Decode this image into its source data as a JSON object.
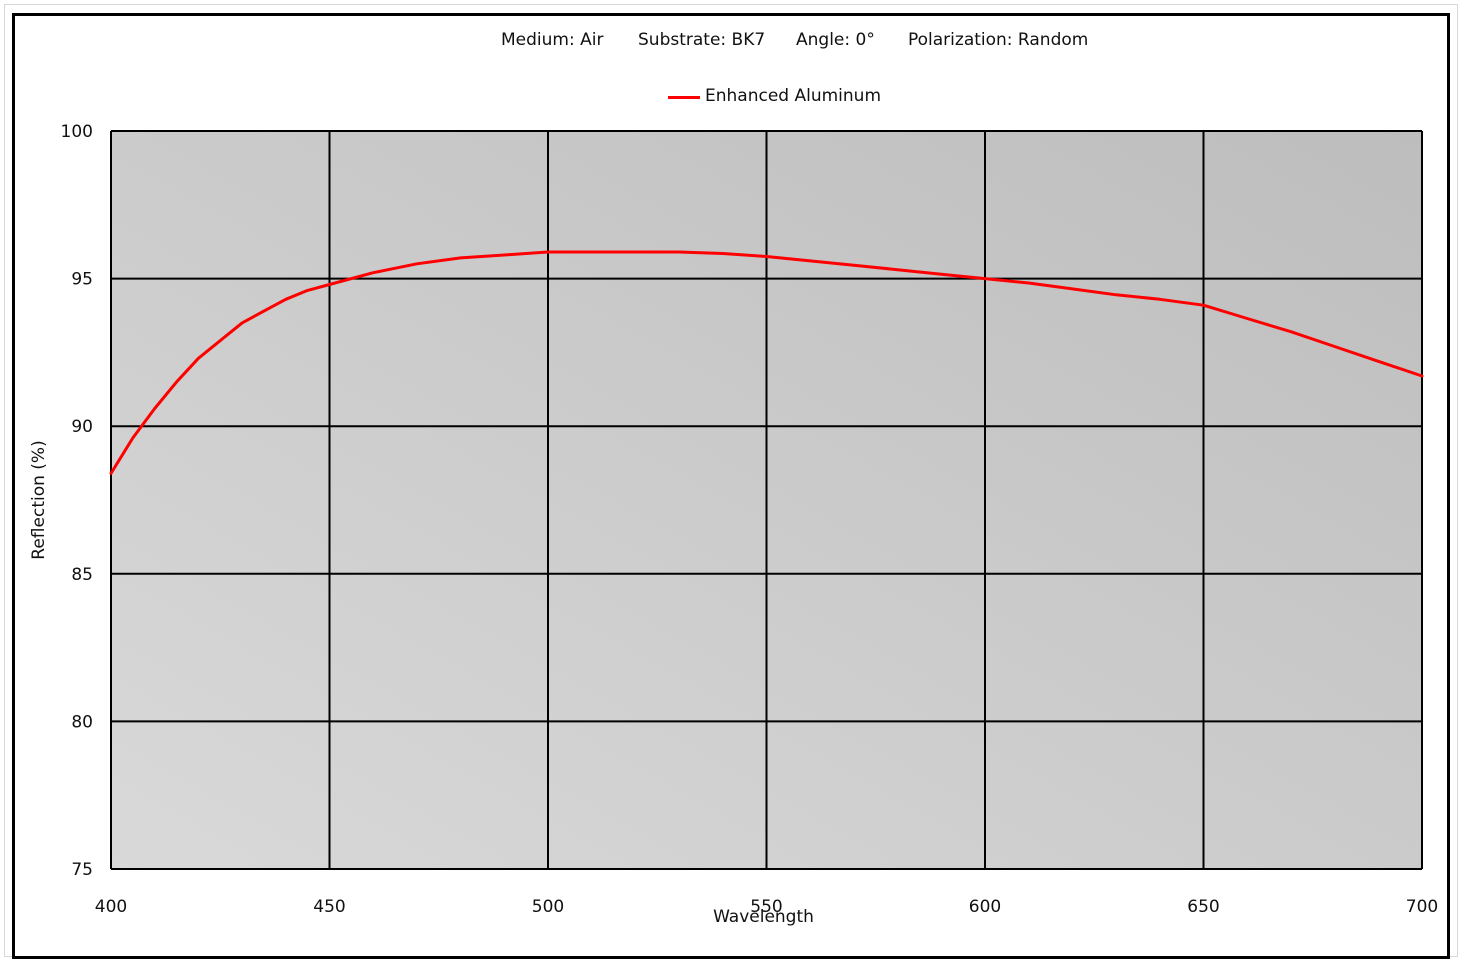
{
  "header": {
    "medium": "Medium: Air",
    "substrate": "Substrate: BK7",
    "angle": "Angle: 0°",
    "polarization": "Polarization: Random"
  },
  "colors": {
    "series": "#ff0000",
    "grid": "#000000",
    "plot_bg_light": "#d9d9d9",
    "plot_bg_dark": "#bdbdbd"
  },
  "chart_data": {
    "type": "line",
    "title": "",
    "xlabel": "Wavelength",
    "ylabel": "Reflection (%)",
    "xlim": [
      400,
      700
    ],
    "ylim": [
      75,
      100
    ],
    "xticks": [
      400,
      450,
      500,
      550,
      600,
      650,
      700
    ],
    "yticks": [
      75,
      80,
      85,
      90,
      95,
      100
    ],
    "grid": true,
    "legend": "top-center",
    "series": [
      {
        "name": "Enhanced Aluminum",
        "x": [
          400,
          405,
          410,
          415,
          420,
          425,
          430,
          435,
          440,
          445,
          450,
          460,
          470,
          480,
          490,
          500,
          510,
          520,
          530,
          540,
          550,
          560,
          570,
          580,
          590,
          600,
          610,
          620,
          630,
          640,
          650,
          660,
          670,
          680,
          690,
          700
        ],
        "y": [
          88.4,
          89.6,
          90.6,
          91.5,
          92.3,
          92.9,
          93.5,
          93.9,
          94.3,
          94.6,
          94.8,
          95.2,
          95.5,
          95.7,
          95.8,
          95.9,
          95.9,
          95.9,
          95.9,
          95.85,
          95.75,
          95.6,
          95.45,
          95.3,
          95.15,
          95.0,
          94.85,
          94.65,
          94.45,
          94.3,
          94.1,
          93.65,
          93.2,
          92.7,
          92.2,
          91.7
        ]
      }
    ]
  }
}
